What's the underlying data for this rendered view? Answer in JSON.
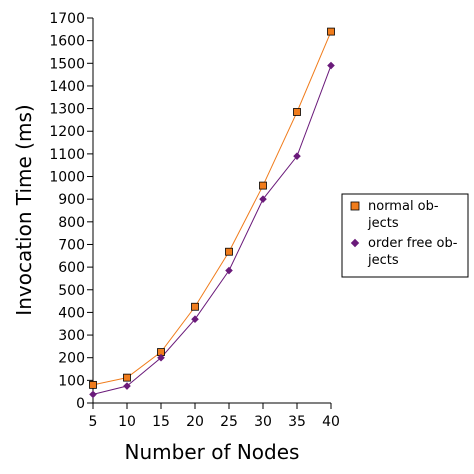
{
  "chart_data": {
    "type": "line",
    "title": "",
    "xlabel": "Number of Nodes",
    "ylabel": "Invocation Time (ms)",
    "x": [
      5,
      10,
      15,
      20,
      25,
      30,
      35,
      40
    ],
    "xlim": [
      5,
      40
    ],
    "ylim": [
      0,
      1700
    ],
    "yticks": [
      0,
      100,
      200,
      300,
      400,
      500,
      600,
      700,
      800,
      900,
      1000,
      1100,
      1200,
      1300,
      1400,
      1500,
      1600,
      1700
    ],
    "xticks": [
      5,
      10,
      15,
      20,
      25,
      30,
      35,
      40
    ],
    "grid": false,
    "legend_position": "right",
    "series": [
      {
        "name": "normal objects",
        "legend_lines": [
          "normal ob-",
          "jects"
        ],
        "values": [
          80,
          112,
          225,
          425,
          668,
          960,
          1285,
          1640
        ],
        "color": "#f07c1c",
        "marker": "square"
      },
      {
        "name": "order free objects",
        "legend_lines": [
          "order free ob-",
          "jects"
        ],
        "values": [
          38,
          75,
          200,
          370,
          585,
          900,
          1090,
          1490
        ],
        "color": "#6a1a7a",
        "marker": "diamond"
      }
    ]
  }
}
